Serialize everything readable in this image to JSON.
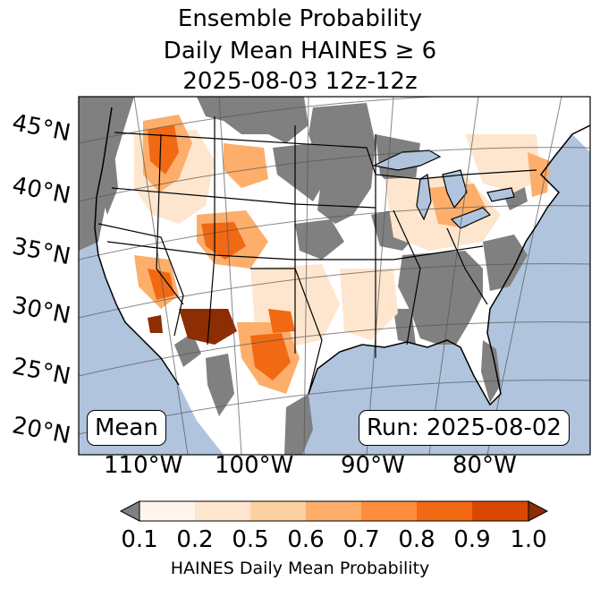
{
  "title": {
    "line1": "Ensemble Probability",
    "line2": "Daily Mean HAINES ≥ 6",
    "line3": "2025-08-03 12z-12z"
  },
  "map": {
    "lat_labels": [
      "45°N",
      "40°N",
      "35°N",
      "30°N",
      "25°N",
      "20°N"
    ],
    "lon_labels": [
      "110°W",
      "100°W",
      "90°W",
      "80°W"
    ],
    "stat_label": "Mean",
    "run_label": "Run: 2025-08-02",
    "colors": {
      "ocean": "#b0c4de",
      "below_min": "#808080"
    }
  },
  "colorbar": {
    "ticks": [
      "0.1",
      "0.2",
      "0.5",
      "0.6",
      "0.7",
      "0.8",
      "0.9",
      "1.0"
    ],
    "colors": [
      "#fff5eb",
      "#fee6ce",
      "#fdd0a2",
      "#fdae6b",
      "#fd8d3c",
      "#f16913",
      "#d94801"
    ],
    "under_color": "#808080",
    "over_color": "#8c2d04",
    "label": "HAINES Daily Mean Probability"
  }
}
